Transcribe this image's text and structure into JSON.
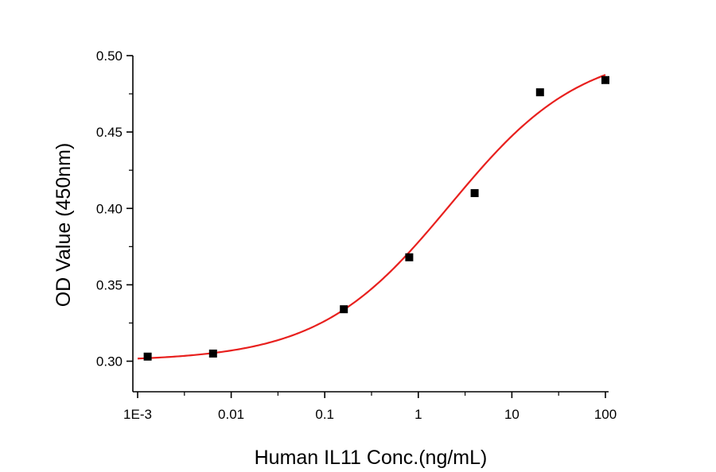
{
  "chart_data": {
    "type": "scatter",
    "title": "",
    "xlabel": "Human IL11 Conc.(ng/mL)",
    "ylabel": "OD Value (450nm)",
    "x_scale": "log",
    "xlim": [
      0.001,
      100
    ],
    "ylim": [
      0.28,
      0.5
    ],
    "x_ticks": [
      {
        "value": 0.001,
        "label": "1E-3"
      },
      {
        "value": 0.01,
        "label": "0.01"
      },
      {
        "value": 0.1,
        "label": "0.1"
      },
      {
        "value": 1,
        "label": "1"
      },
      {
        "value": 10,
        "label": "10"
      },
      {
        "value": 100,
        "label": "100"
      }
    ],
    "y_ticks": [
      {
        "value": 0.3,
        "label": "0.30"
      },
      {
        "value": 0.35,
        "label": "0.35"
      },
      {
        "value": 0.4,
        "label": "0.40"
      },
      {
        "value": 0.45,
        "label": "0.45"
      },
      {
        "value": 0.5,
        "label": "0.50"
      }
    ],
    "grid": false,
    "series": [
      {
        "type": "scatter",
        "color": "#000000",
        "marker": "square",
        "x": [
          0.00128,
          0.0064,
          0.16,
          0.8,
          4,
          20,
          100
        ],
        "y": [
          0.303,
          0.305,
          0.334,
          0.368,
          0.41,
          0.476,
          0.484
        ]
      },
      {
        "type": "fit-curve",
        "color": "#e8201e",
        "model": "4PL",
        "bottom": 0.3,
        "top": 0.505,
        "ec50": 2.2,
        "hill": 0.62
      }
    ]
  }
}
